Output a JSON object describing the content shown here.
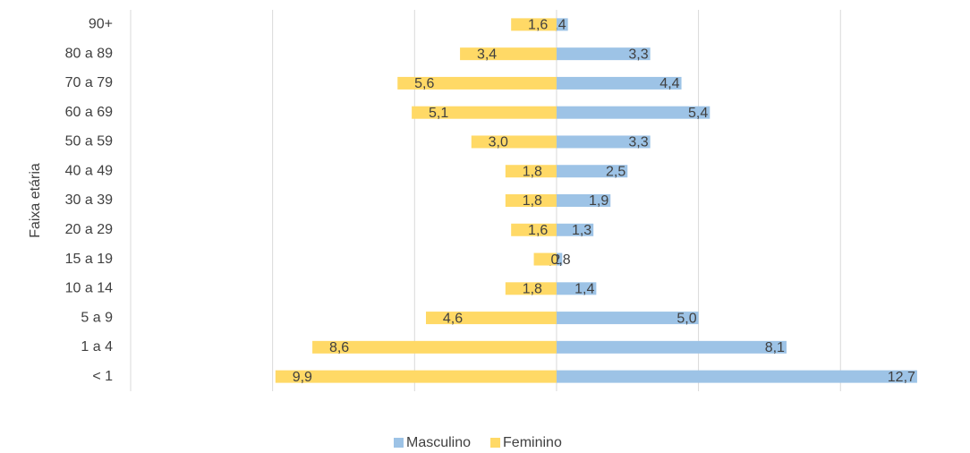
{
  "chart_data": {
    "type": "pyramid",
    "y_label": "Faixa etária",
    "categories": [
      "90+",
      "80 a 89",
      "70 a 79",
      "60 a 69",
      "50 a 59",
      "40 a 49",
      "30 a 39",
      "20 a 29",
      "15 a 19",
      "10 a 14",
      "5 a 9",
      "1 a 4",
      "< 1"
    ],
    "series": [
      {
        "name": "Masculino",
        "color": "#9dc3e6",
        "side": "right",
        "values": [
          0.4,
          3.3,
          4.4,
          5.4,
          3.3,
          2.5,
          1.9,
          1.3,
          0.2,
          1.4,
          5.0,
          8.1,
          12.7
        ],
        "value_labels": [
          "0,4",
          "3,3",
          "4,4",
          "5,4",
          "3,3",
          "2,5",
          "1,9",
          "1,3",
          "0,2",
          "1,4",
          "5,0",
          "8,1",
          "12,7"
        ]
      },
      {
        "name": "Feminino",
        "color": "#ffd966",
        "side": "left",
        "values": [
          1.6,
          3.4,
          5.6,
          5.1,
          3.0,
          1.8,
          1.8,
          1.6,
          0.8,
          1.8,
          4.6,
          8.6,
          9.9
        ],
        "value_labels": [
          "1,6",
          "3,4",
          "5,6",
          "5,1",
          "3,0",
          "1,8",
          "1,8",
          "1,6",
          "0,8",
          "1,8",
          "4,6",
          "8,6",
          "9,9"
        ]
      }
    ],
    "xlim": [
      -15,
      14
    ],
    "xticks": [
      -15,
      -10,
      -5,
      0,
      5,
      10
    ],
    "grid": true,
    "legend": "bottom"
  }
}
